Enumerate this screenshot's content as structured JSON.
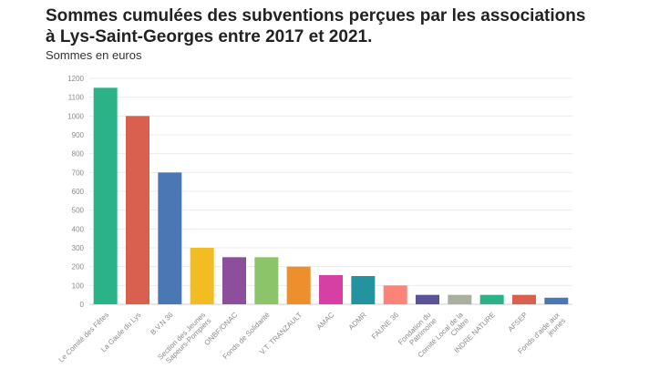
{
  "chart_data": {
    "type": "bar",
    "title": "Sommes cumulées des subventions perçues par les associations à Lys-Saint-Georges entre 2017 et 2021.",
    "subtitle": "Sommes en euros",
    "xlabel": "",
    "ylabel": "",
    "ylim": [
      0,
      1200
    ],
    "yticks": [
      0,
      100,
      200,
      300,
      400,
      500,
      600,
      700,
      800,
      900,
      1000,
      1100,
      1200
    ],
    "grid": true,
    "categories": [
      "Le Comité des Fêtes",
      "La Gaule du Lys",
      "B.V.N 36",
      "Section des Jeunes Sapeurs-Pompiers",
      "ONBF/ONAC",
      "Fonds de Solidarité",
      "V.T. TRANZAULT",
      "AMAC",
      "ADMR",
      "FAUNE 36",
      "Fondation du Patrimoine",
      "Comité Local de la Châtre",
      "INDRE NATURE",
      "AFSEP",
      "Fonds d'aide aux jeunes"
    ],
    "values": [
      1150,
      1000,
      700,
      300,
      250,
      250,
      200,
      155,
      150,
      100,
      50,
      50,
      50,
      50,
      35
    ],
    "colors": [
      "#2bb287",
      "#d9604f",
      "#4b78b5",
      "#f2bd23",
      "#8d4e9c",
      "#8cc46a",
      "#ec8f2c",
      "#d63fa4",
      "#2393a0",
      "#fb8478",
      "#5a5397",
      "#a9b19e",
      "#2bb287",
      "#d9604f",
      "#4b78b5"
    ]
  }
}
